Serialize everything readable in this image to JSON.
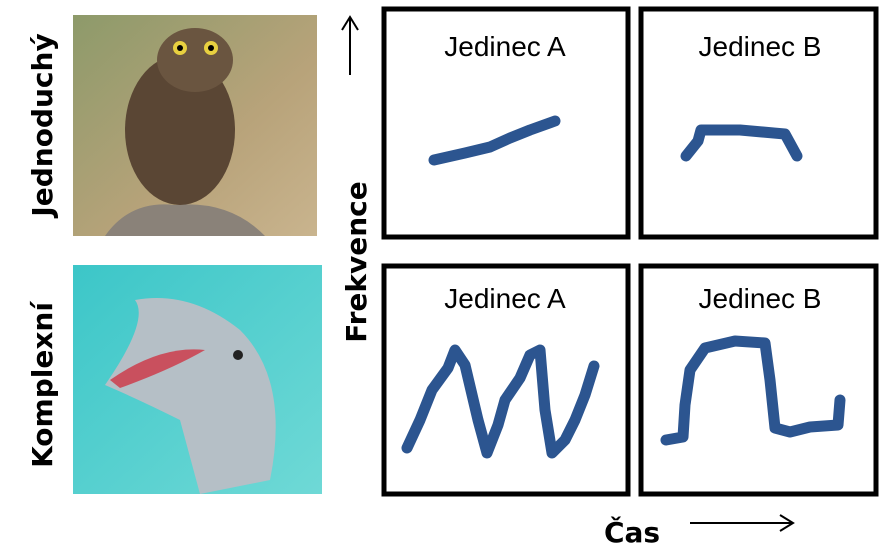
{
  "row_labels": [
    "Jednoduchý",
    "Komplexní"
  ],
  "y_axis_label": "Frekvence",
  "x_axis_label": "Čas",
  "panels": [
    {
      "label": "Jedinec A"
    },
    {
      "label": "Jedinec B"
    },
    {
      "label": "Jedinec A"
    },
    {
      "label": "Jedinec B"
    }
  ]
}
